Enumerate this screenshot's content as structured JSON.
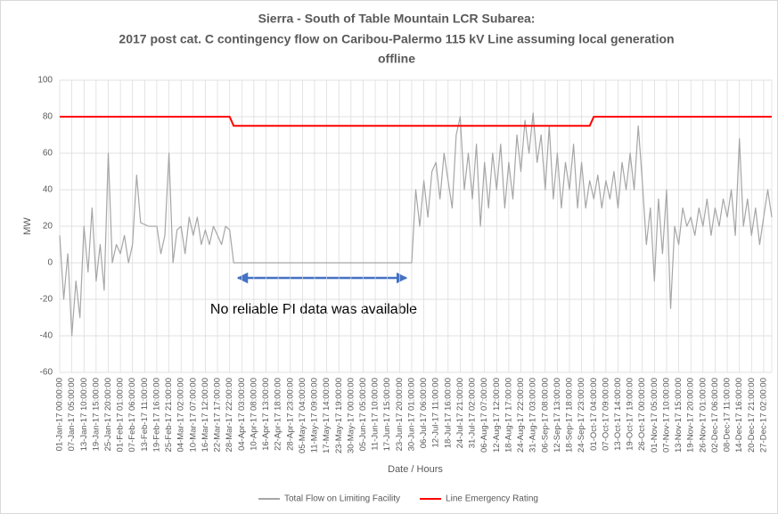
{
  "chart_data": {
    "type": "line",
    "title": [
      "Sierra - South of Table Mountain LCR Subarea:",
      "2017 post cat. C contingency flow on Caribou-Palermo 115 kV Line assuming local generation",
      "offline"
    ],
    "x_label": "Date / Hours",
    "y_label": "MW",
    "annotation": "No reliable PI data was available",
    "ylim": [
      -60,
      100
    ],
    "yticks": [
      -60,
      -40,
      -20,
      0,
      20,
      40,
      60,
      80,
      100
    ],
    "grid": true,
    "legend": "bottom",
    "categories": [
      "01-Jan-17 00:00:00",
      null,
      null,
      "07-Jan-17 05:00:00",
      null,
      null,
      "13-Jan-17 10:00:00",
      null,
      null,
      "19-Jan-17 15:00:00",
      null,
      null,
      "25-Jan-17 20:00:00",
      null,
      null,
      "01-Feb-17 01:00:00",
      null,
      null,
      "07-Feb-17 06:00:00",
      null,
      null,
      "13-Feb-17 11:00:00",
      null,
      null,
      "19-Feb-17 16:00:00",
      null,
      null,
      "25-Feb-17 21:00:00",
      null,
      null,
      "04-Mar-17 02:00:00",
      null,
      null,
      "10-Mar-17 07:00:00",
      null,
      null,
      "16-Mar-17 12:00:00",
      null,
      null,
      "22-Mar-17 17:00:00",
      null,
      null,
      "28-Mar-17 22:00:00",
      null,
      null,
      "04-Apr-17 03:00:00",
      null,
      null,
      "10-Apr-17 08:00:00",
      null,
      null,
      "16-Apr-17 13:00:00",
      null,
      null,
      "22-Apr-17 18:00:00",
      null,
      null,
      "28-Apr-17 23:00:00",
      null,
      null,
      "05-May-17 04:00:00",
      null,
      null,
      "11-May-17 09:00:00",
      null,
      null,
      "17-May-17 14:00:00",
      null,
      null,
      "23-May-17 19:00:00",
      null,
      null,
      "30-May-17 00:00:00",
      null,
      null,
      "05-Jun-17 05:00:00",
      null,
      null,
      "11-Jun-17 10:00:00",
      null,
      null,
      "17-Jun-17 15:00:00",
      null,
      null,
      "23-Jun-17 20:00:00",
      null,
      null,
      "30-Jun-17 01:00:00",
      null,
      null,
      "06-Jul-17 06:00:00",
      null,
      null,
      "12-Jul-17 11:00:00",
      null,
      null,
      "18-Jul-17 16:00:00",
      null,
      null,
      "24-Jul-17 21:00:00",
      null,
      null,
      "31-Jul-17 02:00:00",
      null,
      null,
      "06-Aug-17 07:00:00",
      null,
      null,
      "12-Aug-17 12:00:00",
      null,
      null,
      "18-Aug-17 17:00:00",
      null,
      null,
      "24-Aug-17 22:00:00",
      null,
      null,
      "31-Aug-17 03:00:00",
      null,
      null,
      "06-Sep-17 08:00:00",
      null,
      null,
      "12-Sep-17 13:00:00",
      null,
      null,
      "18-Sep-17 18:00:00",
      null,
      null,
      "24-Sep-17 23:00:00",
      null,
      null,
      "01-Oct-17 04:00:00",
      null,
      null,
      "07-Oct-17 09:00:00",
      null,
      null,
      "13-Oct-17 14:00:00",
      null,
      null,
      "19-Oct-17 19:00:00",
      null,
      null,
      "26-Oct-17 00:00:00",
      null,
      null,
      "01-Nov-17 05:00:00",
      null,
      null,
      "07-Nov-17 10:00:00",
      null,
      null,
      "13-Nov-17 15:00:00",
      null,
      null,
      "19-Nov-17 20:00:00",
      null,
      null,
      "26-Nov-17 01:00:00",
      null,
      null,
      "02-Dec-17 06:00:00",
      null,
      null,
      "08-Dec-17 11:00:00",
      null,
      null,
      "14-Dec-17 16:00:00",
      null,
      null,
      "20-Dec-17 21:00:00",
      null,
      null,
      "27-Dec-17 02:00:00",
      null,
      null
    ],
    "series": [
      {
        "name": "Total Flow on Limiting Facility",
        "color": "#a6a6a6",
        "width": 1.2,
        "values": [
          15,
          -20,
          5,
          -40,
          -10,
          -30,
          20,
          -5,
          30,
          -10,
          10,
          -15,
          60,
          0,
          10,
          5,
          15,
          0,
          10,
          48,
          22,
          21,
          20,
          20,
          20,
          5,
          15,
          60,
          0,
          18,
          20,
          5,
          25,
          15,
          25,
          10,
          18,
          10,
          20,
          15,
          10,
          20,
          18,
          0,
          0,
          0,
          0,
          0,
          0,
          0,
          0,
          0,
          0,
          0,
          0,
          0,
          0,
          0,
          0,
          0,
          0,
          0,
          0,
          0,
          0,
          0,
          0,
          0,
          0,
          0,
          0,
          0,
          0,
          0,
          0,
          0,
          0,
          0,
          0,
          0,
          0,
          0,
          0,
          0,
          0,
          0,
          0,
          0,
          40,
          20,
          45,
          25,
          50,
          55,
          35,
          60,
          45,
          30,
          70,
          80,
          40,
          60,
          35,
          65,
          20,
          55,
          30,
          60,
          40,
          65,
          30,
          55,
          35,
          70,
          50,
          78,
          60,
          82,
          55,
          70,
          40,
          75,
          35,
          60,
          30,
          55,
          40,
          65,
          30,
          55,
          30,
          45,
          35,
          48,
          30,
          45,
          35,
          50,
          30,
          55,
          40,
          60,
          40,
          75,
          45,
          10,
          30,
          -10,
          35,
          5,
          40,
          -25,
          20,
          10,
          30,
          20,
          25,
          15,
          30,
          20,
          35,
          15,
          30,
          20,
          35,
          25,
          40,
          15,
          68,
          20,
          35,
          15,
          30,
          10,
          25,
          40,
          25
        ]
      },
      {
        "name": "Line Emergency Rating",
        "color": "#ff0000",
        "width": 2,
        "values": [
          80,
          80,
          80,
          80,
          80,
          80,
          80,
          80,
          80,
          80,
          80,
          80,
          80,
          80,
          80,
          80,
          80,
          80,
          80,
          80,
          80,
          80,
          80,
          80,
          80,
          80,
          80,
          80,
          80,
          80,
          80,
          80,
          80,
          80,
          80,
          80,
          80,
          80,
          80,
          80,
          80,
          80,
          80,
          75,
          75,
          75,
          75,
          75,
          75,
          75,
          75,
          75,
          75,
          75,
          75,
          75,
          75,
          75,
          75,
          75,
          75,
          75,
          75,
          75,
          75,
          75,
          75,
          75,
          75,
          75,
          75,
          75,
          75,
          75,
          75,
          75,
          75,
          75,
          75,
          75,
          75,
          75,
          75,
          75,
          75,
          75,
          75,
          75,
          75,
          75,
          75,
          75,
          75,
          75,
          75,
          75,
          75,
          75,
          75,
          75,
          75,
          75,
          75,
          75,
          75,
          75,
          75,
          75,
          75,
          75,
          75,
          75,
          75,
          75,
          75,
          75,
          75,
          75,
          75,
          75,
          75,
          75,
          75,
          75,
          75,
          75,
          75,
          75,
          75,
          75,
          75,
          75,
          80,
          80,
          80,
          80,
          80,
          80,
          80,
          80,
          80,
          80,
          80,
          80,
          80,
          80,
          80,
          80,
          80,
          80,
          80,
          80,
          80,
          80,
          80,
          80,
          80,
          80,
          80,
          80,
          80,
          80,
          80,
          80,
          80,
          80,
          80,
          80,
          80,
          80,
          80,
          80,
          80,
          80,
          80,
          80,
          80
        ]
      }
    ]
  }
}
